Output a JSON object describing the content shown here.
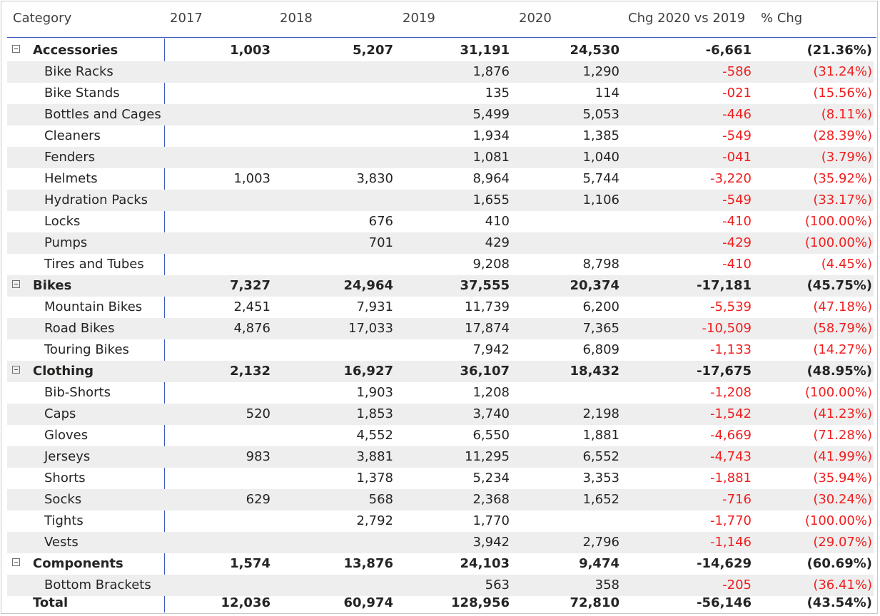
{
  "headers": [
    "Category",
    "2017",
    "2018",
    "2019",
    "2020",
    "Chg 2020 vs 2019",
    "% Chg"
  ],
  "rows": [
    {
      "type": "group",
      "label": "Accessories",
      "v2017": "1,003",
      "v2018": "5,207",
      "v2019": "31,191",
      "v2020": "24,530",
      "chg": "-6,661",
      "pct": "(21.36%)"
    },
    {
      "type": "item",
      "label": "Bike Racks",
      "v2017": "",
      "v2018": "",
      "v2019": "1,876",
      "v2020": "1,290",
      "chg": "-586",
      "pct": "(31.24%)"
    },
    {
      "type": "item",
      "label": "Bike Stands",
      "v2017": "",
      "v2018": "",
      "v2019": "135",
      "v2020": "114",
      "chg": "-021",
      "pct": "(15.56%)"
    },
    {
      "type": "item",
      "label": "Bottles and Cages",
      "v2017": "",
      "v2018": "",
      "v2019": "5,499",
      "v2020": "5,053",
      "chg": "-446",
      "pct": "(8.11%)"
    },
    {
      "type": "item",
      "label": "Cleaners",
      "v2017": "",
      "v2018": "",
      "v2019": "1,934",
      "v2020": "1,385",
      "chg": "-549",
      "pct": "(28.39%)"
    },
    {
      "type": "item",
      "label": "Fenders",
      "v2017": "",
      "v2018": "",
      "v2019": "1,081",
      "v2020": "1,040",
      "chg": "-041",
      "pct": "(3.79%)"
    },
    {
      "type": "item",
      "label": "Helmets",
      "v2017": "1,003",
      "v2018": "3,830",
      "v2019": "8,964",
      "v2020": "5,744",
      "chg": "-3,220",
      "pct": "(35.92%)"
    },
    {
      "type": "item",
      "label": "Hydration Packs",
      "v2017": "",
      "v2018": "",
      "v2019": "1,655",
      "v2020": "1,106",
      "chg": "-549",
      "pct": "(33.17%)"
    },
    {
      "type": "item",
      "label": "Locks",
      "v2017": "",
      "v2018": "676",
      "v2019": "410",
      "v2020": "",
      "chg": "-410",
      "pct": "(100.00%)"
    },
    {
      "type": "item",
      "label": "Pumps",
      "v2017": "",
      "v2018": "701",
      "v2019": "429",
      "v2020": "",
      "chg": "-429",
      "pct": "(100.00%)"
    },
    {
      "type": "item",
      "label": "Tires and Tubes",
      "v2017": "",
      "v2018": "",
      "v2019": "9,208",
      "v2020": "8,798",
      "chg": "-410",
      "pct": "(4.45%)"
    },
    {
      "type": "group",
      "label": "Bikes",
      "v2017": "7,327",
      "v2018": "24,964",
      "v2019": "37,555",
      "v2020": "20,374",
      "chg": "-17,181",
      "pct": "(45.75%)"
    },
    {
      "type": "item",
      "label": "Mountain Bikes",
      "v2017": "2,451",
      "v2018": "7,931",
      "v2019": "11,739",
      "v2020": "6,200",
      "chg": "-5,539",
      "pct": "(47.18%)"
    },
    {
      "type": "item",
      "label": "Road Bikes",
      "v2017": "4,876",
      "v2018": "17,033",
      "v2019": "17,874",
      "v2020": "7,365",
      "chg": "-10,509",
      "pct": "(58.79%)"
    },
    {
      "type": "item",
      "label": "Touring Bikes",
      "v2017": "",
      "v2018": "",
      "v2019": "7,942",
      "v2020": "6,809",
      "chg": "-1,133",
      "pct": "(14.27%)"
    },
    {
      "type": "group",
      "label": "Clothing",
      "v2017": "2,132",
      "v2018": "16,927",
      "v2019": "36,107",
      "v2020": "18,432",
      "chg": "-17,675",
      "pct": "(48.95%)"
    },
    {
      "type": "item",
      "label": "Bib-Shorts",
      "v2017": "",
      "v2018": "1,903",
      "v2019": "1,208",
      "v2020": "",
      "chg": "-1,208",
      "pct": "(100.00%)"
    },
    {
      "type": "item",
      "label": "Caps",
      "v2017": "520",
      "v2018": "1,853",
      "v2019": "3,740",
      "v2020": "2,198",
      "chg": "-1,542",
      "pct": "(41.23%)"
    },
    {
      "type": "item",
      "label": "Gloves",
      "v2017": "",
      "v2018": "4,552",
      "v2019": "6,550",
      "v2020": "1,881",
      "chg": "-4,669",
      "pct": "(71.28%)"
    },
    {
      "type": "item",
      "label": "Jerseys",
      "v2017": "983",
      "v2018": "3,881",
      "v2019": "11,295",
      "v2020": "6,552",
      "chg": "-4,743",
      "pct": "(41.99%)"
    },
    {
      "type": "item",
      "label": "Shorts",
      "v2017": "",
      "v2018": "1,378",
      "v2019": "5,234",
      "v2020": "3,353",
      "chg": "-1,881",
      "pct": "(35.94%)"
    },
    {
      "type": "item",
      "label": "Socks",
      "v2017": "629",
      "v2018": "568",
      "v2019": "2,368",
      "v2020": "1,652",
      "chg": "-716",
      "pct": "(30.24%)"
    },
    {
      "type": "item",
      "label": "Tights",
      "v2017": "",
      "v2018": "2,792",
      "v2019": "1,770",
      "v2020": "",
      "chg": "-1,770",
      "pct": "(100.00%)"
    },
    {
      "type": "item",
      "label": "Vests",
      "v2017": "",
      "v2018": "",
      "v2019": "3,942",
      "v2020": "2,796",
      "chg": "-1,146",
      "pct": "(29.07%)"
    },
    {
      "type": "group",
      "label": "Components",
      "v2017": "1,574",
      "v2018": "13,876",
      "v2019": "24,103",
      "v2020": "9,474",
      "chg": "-14,629",
      "pct": "(60.69%)"
    },
    {
      "type": "item",
      "label": "Bottom Brackets",
      "v2017": "",
      "v2018": "",
      "v2019": "563",
      "v2020": "358",
      "chg": "-205",
      "pct": "(36.41%)"
    }
  ],
  "total": {
    "label": "Total",
    "v2017": "12,036",
    "v2018": "60,974",
    "v2019": "128,956",
    "v2020": "72,810",
    "chg": "-56,146",
    "pct": "(43.54%)"
  },
  "colors": {
    "negative": "#f01e1e",
    "alt_row": "#eeeeee",
    "header_rule": "#3b5bbd"
  },
  "icons": {
    "group_toggle": "collapse-minus-icon"
  }
}
